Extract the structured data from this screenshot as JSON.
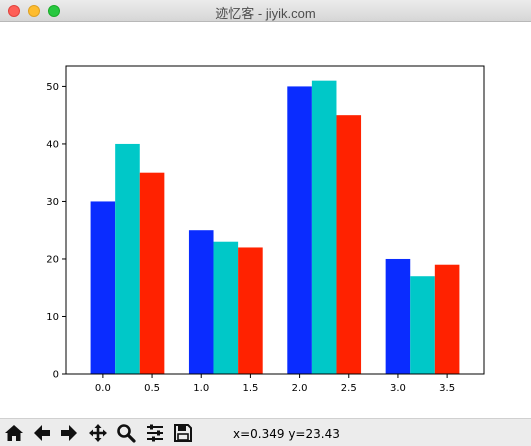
{
  "window": {
    "title": "迹忆客 - jiyik.com",
    "buttons": [
      "close",
      "minimize",
      "maximize"
    ]
  },
  "toolbar": {
    "tools": [
      "home-icon",
      "back-arrow-icon",
      "forward-arrow-icon",
      "pan-move-icon",
      "zoom-magnifier-icon",
      "configure-subplots-icon",
      "save-floppy-icon"
    ],
    "coordinates": "x=0.349 y=23.43"
  },
  "chart_data": {
    "type": "bar",
    "title": "",
    "xlabel": "",
    "ylabel": "",
    "xlim": [
      -0.375,
      3.875
    ],
    "ylim": [
      0,
      53.55
    ],
    "x_ticks": [
      0.0,
      0.5,
      1.0,
      1.5,
      2.0,
      2.5,
      3.0,
      3.5
    ],
    "x_tick_labels": [
      "0.0",
      "0.5",
      "1.0",
      "1.5",
      "2.0",
      "2.5",
      "3.0",
      "3.5"
    ],
    "y_ticks": [
      0,
      10,
      20,
      30,
      40,
      50
    ],
    "y_tick_labels": [
      "0",
      "10",
      "20",
      "30",
      "40",
      "50"
    ],
    "bar_width": 0.25,
    "grid": false,
    "legend": "none",
    "series": [
      {
        "color": "#0a2cff",
        "x": [
          0.0,
          1.0,
          2.0,
          3.0
        ],
        "values": [
          30,
          25,
          50,
          20
        ]
      },
      {
        "color": "#00c8c8",
        "x": [
          0.25,
          1.25,
          2.25,
          3.25
        ],
        "values": [
          40,
          23,
          51,
          17
        ]
      },
      {
        "color": "#ff2200",
        "x": [
          0.5,
          1.5,
          2.5,
          3.5
        ],
        "values": [
          35,
          22,
          45,
          19
        ]
      }
    ]
  }
}
